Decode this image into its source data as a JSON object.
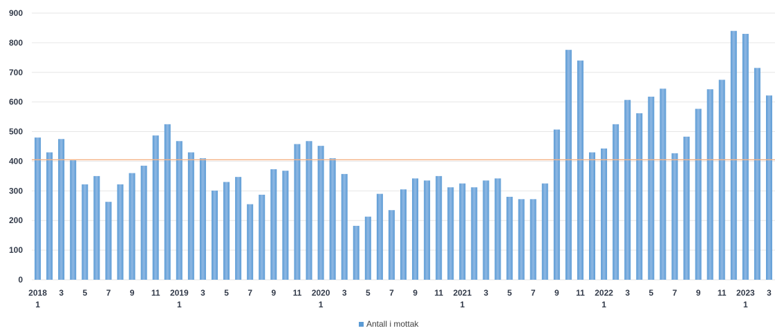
{
  "chart_data": {
    "type": "bar",
    "ylim": [
      0,
      900
    ],
    "yticks": [
      0,
      100,
      200,
      300,
      400,
      500,
      600,
      700,
      800,
      900
    ],
    "grid": true,
    "legend_position": "bottom",
    "reference_line": {
      "value": 405,
      "color": "#f4b183"
    },
    "colors": {
      "bar": "#5b9bd5",
      "bar_light": "#8fb8e3",
      "grid": "#e6e6e6",
      "axis_text": "#333b4a"
    },
    "x_labels_top": [
      "2018",
      "",
      "3",
      "",
      "5",
      "",
      "7",
      "",
      "9",
      "",
      "11",
      "",
      "2019",
      "",
      "3",
      "",
      "5",
      "",
      "7",
      "",
      "9",
      "",
      "11",
      "",
      "2020",
      "",
      "3",
      "",
      "5",
      "",
      "7",
      "",
      "9",
      "",
      "11",
      "",
      "2021",
      "",
      "3",
      "",
      "5",
      "",
      "7",
      "",
      "9",
      "",
      "11",
      "",
      "2022",
      "",
      "3",
      "",
      "5",
      "",
      "7",
      "",
      "9",
      "",
      "11",
      "",
      "2023",
      "",
      "3"
    ],
    "x_labels_bottom": [
      "1",
      "",
      "",
      "",
      "",
      "",
      "",
      "",
      "",
      "",
      "",
      "",
      "1",
      "",
      "",
      "",
      "",
      "",
      "",
      "",
      "",
      "",
      "",
      "",
      "1",
      "",
      "",
      "",
      "",
      "",
      "",
      "",
      "",
      "",
      "",
      "",
      "1",
      "",
      "",
      "",
      "",
      "",
      "",
      "",
      "",
      "",
      "",
      "",
      "1",
      "",
      "",
      "",
      "",
      "",
      "",
      "",
      "",
      "",
      "",
      "",
      "1",
      "",
      ""
    ],
    "series": [
      {
        "name": "Antall i mottak",
        "values": [
          480,
          430,
          475,
          403,
          322,
          350,
          263,
          322,
          360,
          385,
          487,
          525,
          468,
          430,
          410,
          301,
          330,
          347,
          255,
          287,
          373,
          368,
          458,
          468,
          452,
          410,
          357,
          182,
          213,
          290,
          235,
          305,
          342,
          335,
          350,
          312,
          325,
          312,
          335,
          342,
          280,
          272,
          272,
          325,
          507,
          776,
          740,
          430,
          443,
          525,
          607,
          562,
          618,
          645,
          427,
          483,
          577,
          643,
          675,
          840,
          830,
          715,
          622
        ]
      }
    ]
  }
}
